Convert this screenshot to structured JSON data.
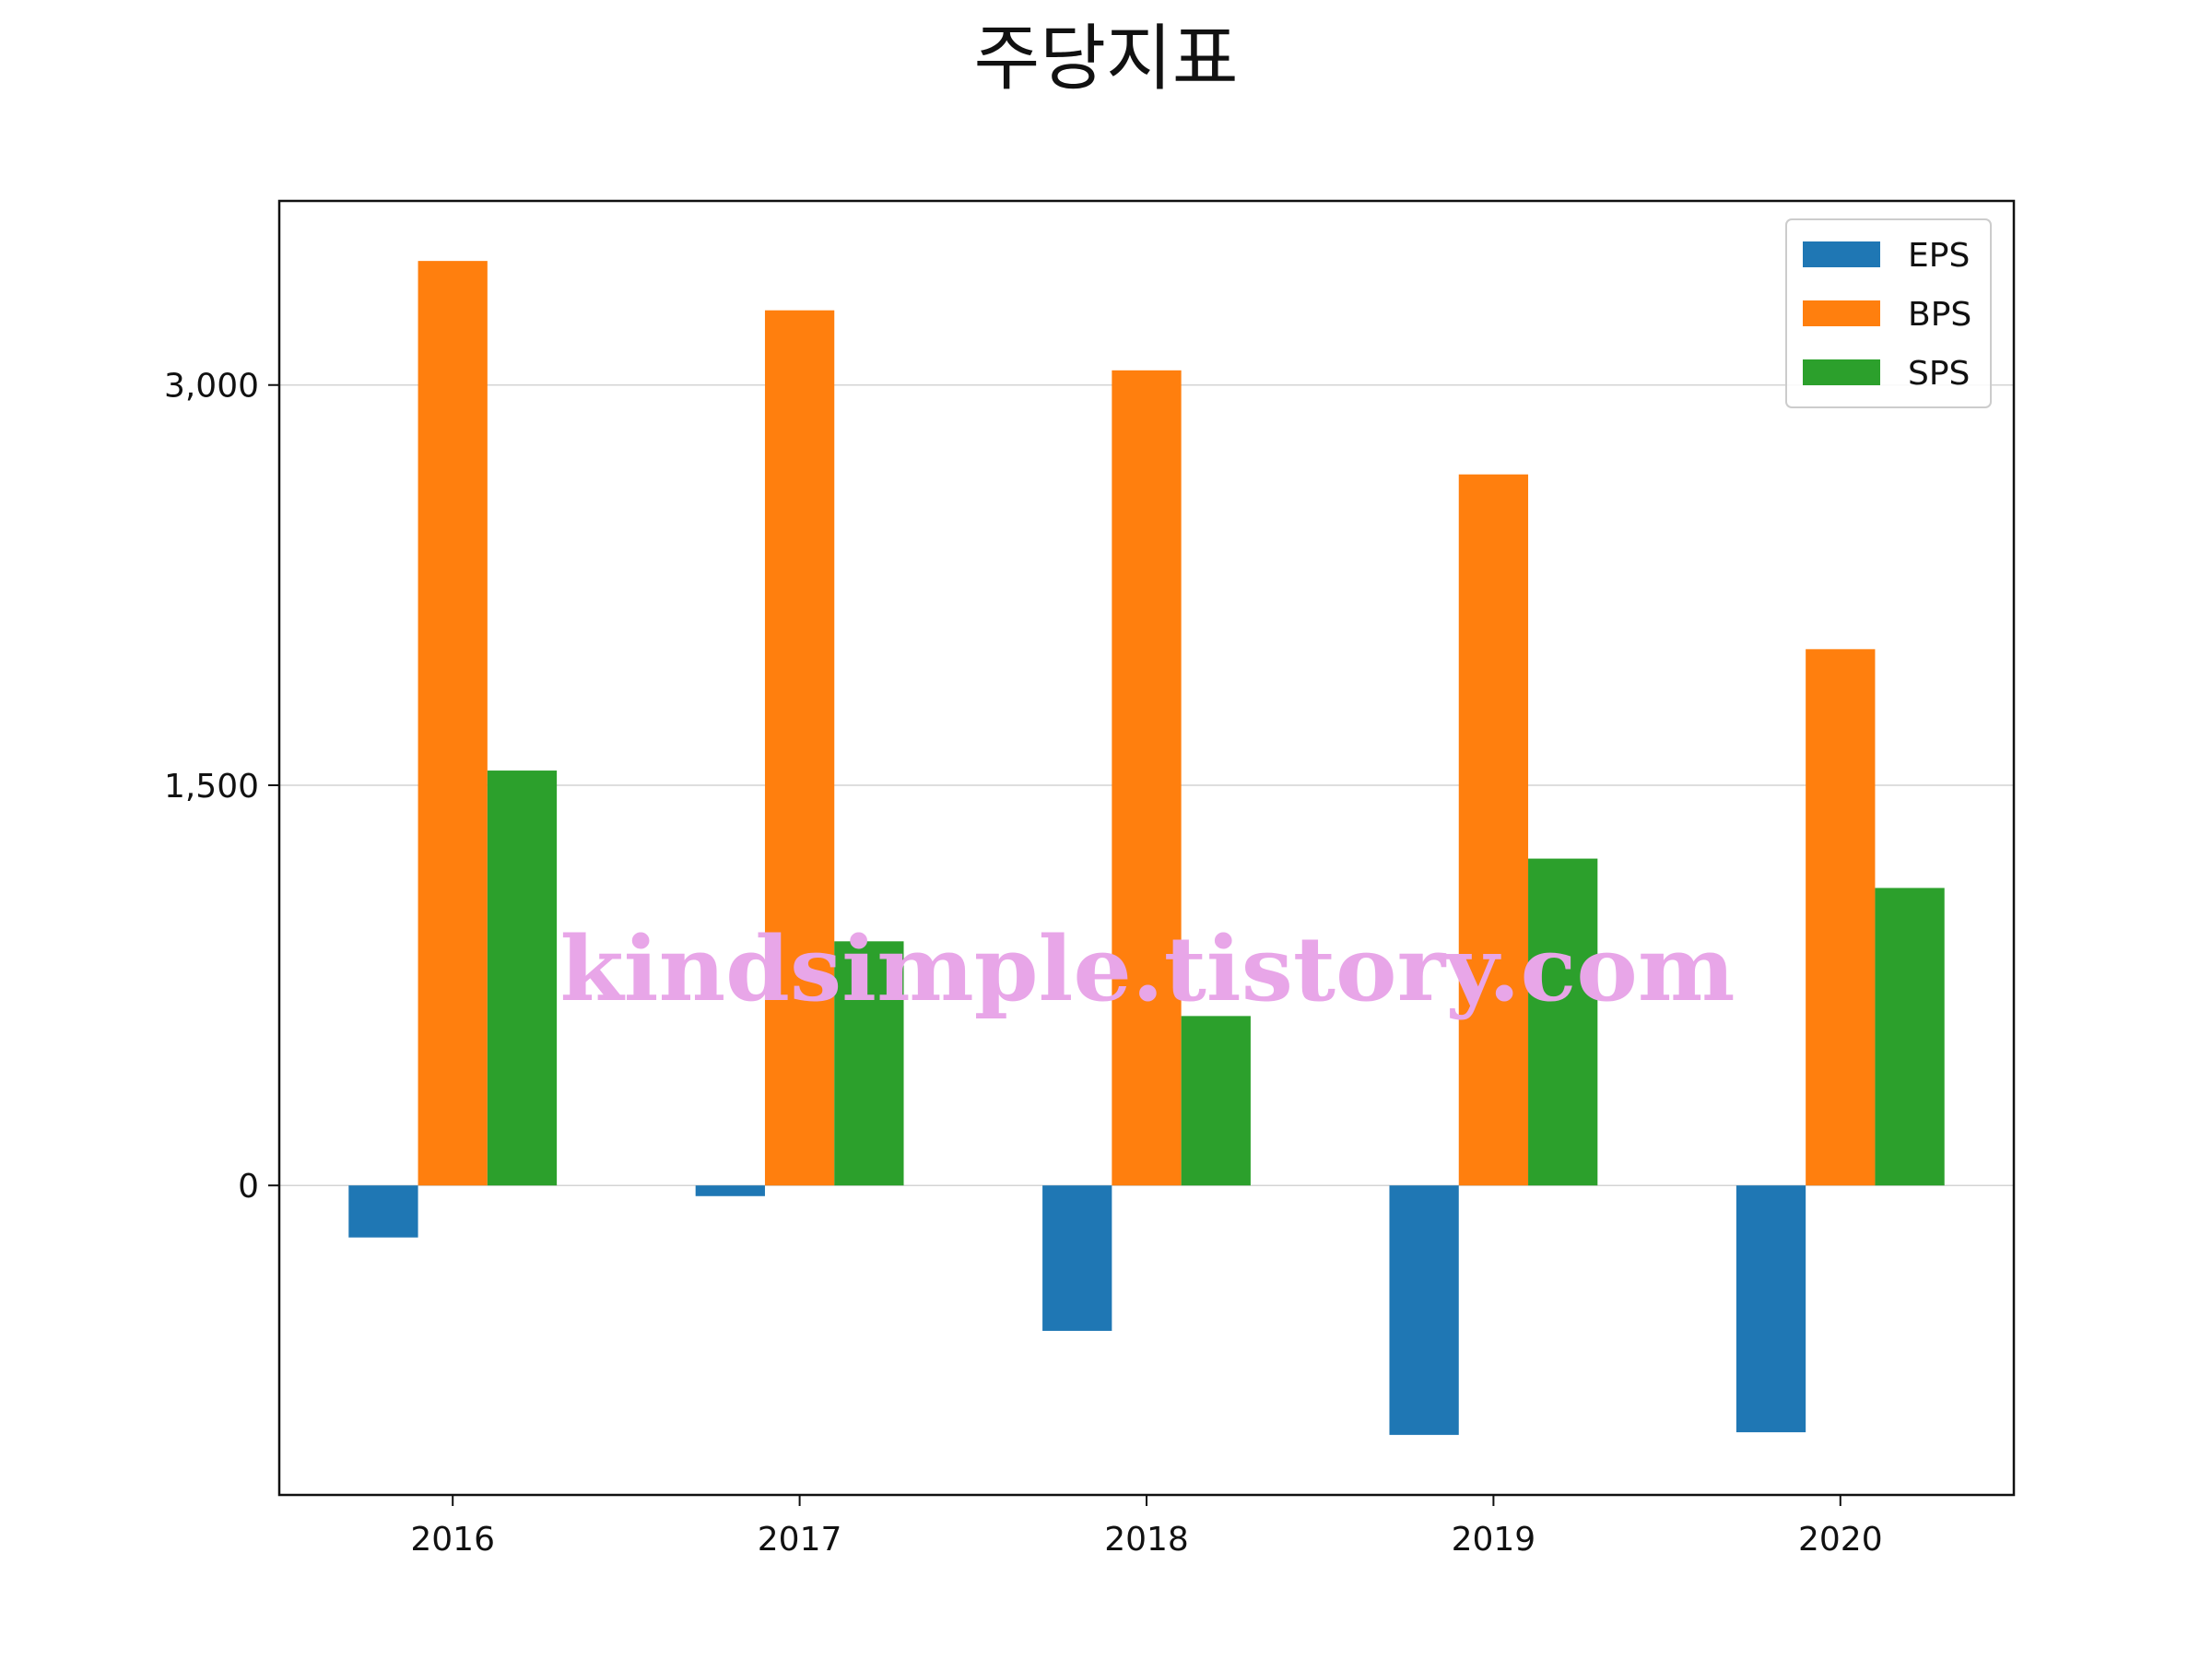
{
  "chart_data": {
    "type": "bar",
    "title": "주당지표",
    "xlabel": "",
    "ylabel": "",
    "categories": [
      "2016",
      "2017",
      "2018",
      "2019",
      "2020"
    ],
    "series": [
      {
        "name": "EPS",
        "color": "#1f77b4",
        "values": [
          -195,
          -40,
          -545,
          -935,
          -925
        ]
      },
      {
        "name": "BPS",
        "color": "#ff7f0e",
        "values": [
          3465,
          3280,
          3055,
          2665,
          2010
        ]
      },
      {
        "name": "SPS",
        "color": "#2ca02c",
        "values": [
          1555,
          915,
          635,
          1225,
          1115
        ]
      }
    ],
    "ylim": [
      -1160,
      3690
    ],
    "yticks": [
      0,
      1500,
      3000
    ],
    "ytick_labels": [
      "0",
      "1,500",
      "3,000"
    ],
    "grid": "horizontal",
    "legend": "top-right"
  },
  "watermark": "kindsimple.tistory.com"
}
